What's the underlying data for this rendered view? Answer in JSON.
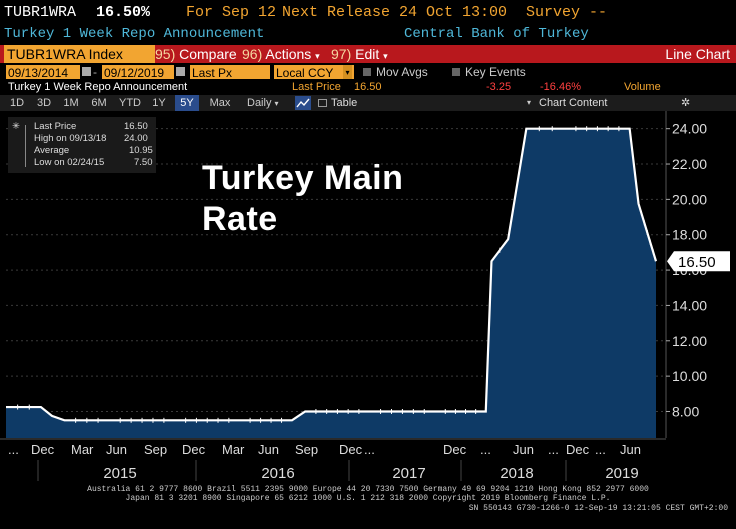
{
  "header": {
    "ticker": "TUBR1WRA",
    "last_value": "16.50%",
    "for_label": "For Sep 12",
    "next_release": "Next Release 24 Oct 13:00",
    "survey": "Survey --"
  },
  "subheader": {
    "name": "Turkey 1 Week Repo Announcement",
    "source": "Central Bank of Turkey"
  },
  "toolbar": {
    "security": "TUBR1WRA Index",
    "compare_key": "95)",
    "compare_label": "Compare",
    "actions_key": "96)",
    "actions_label": "Actions",
    "edit_key": "97)",
    "edit_label": "Edit",
    "chart_type": "Line Chart"
  },
  "fields": {
    "start_date": "09/13/2014",
    "end_date": "09/12/2019",
    "price_field": "Last Px",
    "currency": "Local CCY",
    "mov_avgs": "Mov Avgs",
    "key_events": "Key Events"
  },
  "info_row": {
    "series": "Turkey 1 Week Repo Announcement",
    "last_price_label": "Last Price",
    "last_price": "16.50",
    "change": "-3.25",
    "change_pct": "-16.46%",
    "volume": "Volume"
  },
  "periods": [
    "1D",
    "3D",
    "1M",
    "6M",
    "YTD",
    "1Y",
    "5Y",
    "Max"
  ],
  "active_period": "5Y",
  "frequency": "Daily",
  "table_label": "Table",
  "chart_content_label": "Chart Content",
  "legend": {
    "last_price_label": "Last Price",
    "last_price": "16.50",
    "high_label": "High on 09/13/18",
    "high": "24.00",
    "average_label": "Average",
    "average": "10.95",
    "low_label": "Low on 02/24/15",
    "low": "7.50"
  },
  "overlay_title_line1": "Turkey Main",
  "overlay_title_line2": "Rate",
  "footer": {
    "line1": "Australia 61 2 9777 8600 Brazil 5511 2395 9000 Europe 44 20 7330 7500 Germany 49 69 9204 1210 Hong Kong 852 2977 6000",
    "line2": "Japan 81 3 3201 8900       Singapore 65 6212 1000       U.S. 1 212 318 2000        Copyright 2019 Bloomberg Finance L.P.",
    "line3": "SN 550143 G730-1266-0 12-Sep-19 13:21:05 CEST GMT+2:00"
  },
  "colors": {
    "accent": "#f2a531",
    "toolbar_red": "#b8181d",
    "area_fill": "#0e3a66",
    "line": "#ffffff"
  },
  "chart_data": {
    "type": "area",
    "ylim": [
      6.5,
      25.0
    ],
    "y_ticks": [
      "8.00",
      "10.00",
      "12.00",
      "14.00",
      "16.00",
      "18.00",
      "20.00",
      "22.00",
      "24.00"
    ],
    "last_value_label": "16.50",
    "x_month_labels": [
      "...",
      "Dec",
      "Mar",
      "Jun",
      "Sep",
      "Dec",
      "Mar",
      "Jun",
      "Sep",
      "Dec",
      "...",
      "Dec",
      "...",
      "Jun",
      "...",
      "Dec",
      "...",
      "Jun"
    ],
    "x_year_labels": [
      "2015",
      "2016",
      "2017",
      "2018",
      "2019"
    ],
    "series": [
      {
        "x": [
          "2014-09-13",
          "2014-12-20",
          "2015-01-20",
          "2015-02-24",
          "2015-06-30",
          "2015-12-31",
          "2016-06-30",
          "2016-11-24",
          "2016-12-31",
          "2017-06-30",
          "2017-12-31",
          "2018-05-22",
          "2018-06-07",
          "2018-07-24",
          "2018-09-13",
          "2018-12-31",
          "2019-06-30",
          "2019-07-25",
          "2019-09-12"
        ],
        "y": [
          8.25,
          8.25,
          7.75,
          7.5,
          7.5,
          7.5,
          7.5,
          7.5,
          8.0,
          8.0,
          8.0,
          8.0,
          16.5,
          17.75,
          24.0,
          24.0,
          24.0,
          19.75,
          16.5
        ]
      }
    ]
  }
}
